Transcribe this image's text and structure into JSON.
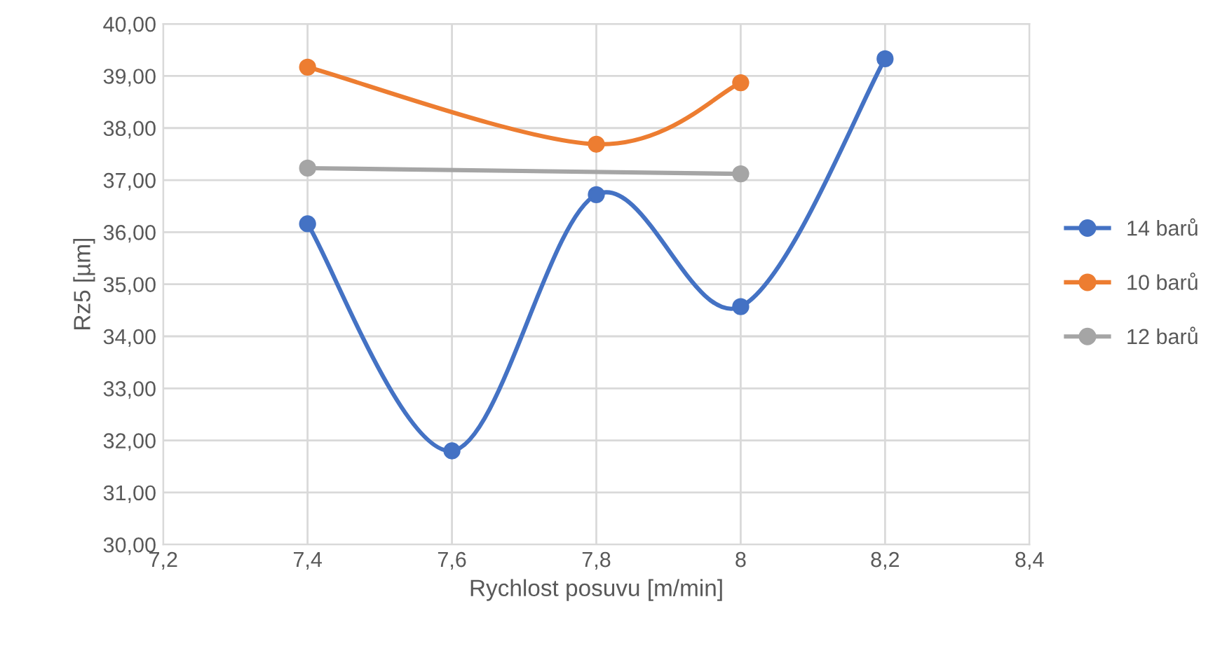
{
  "chart_data": {
    "type": "line",
    "xlabel": "Rychlost posuvu [m/min]",
    "ylabel": "Rz5 [µm]",
    "xlim": [
      7.2,
      8.4
    ],
    "xticks": [
      {
        "value": 7.2,
        "label": "7,2"
      },
      {
        "value": 7.4,
        "label": "7,4"
      },
      {
        "value": 7.6,
        "label": "7,6"
      },
      {
        "value": 7.8,
        "label": "7,8"
      },
      {
        "value": 8,
        "label": "8"
      },
      {
        "value": 8.2,
        "label": "8,2"
      },
      {
        "value": 8.4,
        "label": "8,4"
      }
    ],
    "ylim": [
      30,
      40
    ],
    "yticks": [
      {
        "value": 30,
        "label": "30,00"
      },
      {
        "value": 31,
        "label": "31,00"
      },
      {
        "value": 32,
        "label": "32,00"
      },
      {
        "value": 33,
        "label": "33,00"
      },
      {
        "value": 34,
        "label": "34,00"
      },
      {
        "value": 35,
        "label": "35,00"
      },
      {
        "value": 36,
        "label": "36,00"
      },
      {
        "value": 37,
        "label": "37,00"
      },
      {
        "value": 38,
        "label": "38,00"
      },
      {
        "value": 39,
        "label": "39,00"
      },
      {
        "value": 40,
        "label": "40,00"
      }
    ],
    "grid": true,
    "legend": "right",
    "marker": "circle",
    "line_style": "solid",
    "series": [
      {
        "name": "14 barů",
        "color": "#4472c4",
        "x": [
          7.4,
          7.6,
          7.8,
          8,
          8.2
        ],
        "values": [
          36.16,
          31.8,
          36.72,
          34.57,
          39.33
        ]
      },
      {
        "name": "10 barů",
        "color": "#ed7d31",
        "x": [
          7.4,
          7.8,
          8
        ],
        "values": [
          39.17,
          37.69,
          38.87
        ]
      },
      {
        "name": "12 barů",
        "color": "#a5a5a5",
        "x": [
          7.4,
          8
        ],
        "values": [
          37.23,
          37.12
        ]
      }
    ]
  }
}
